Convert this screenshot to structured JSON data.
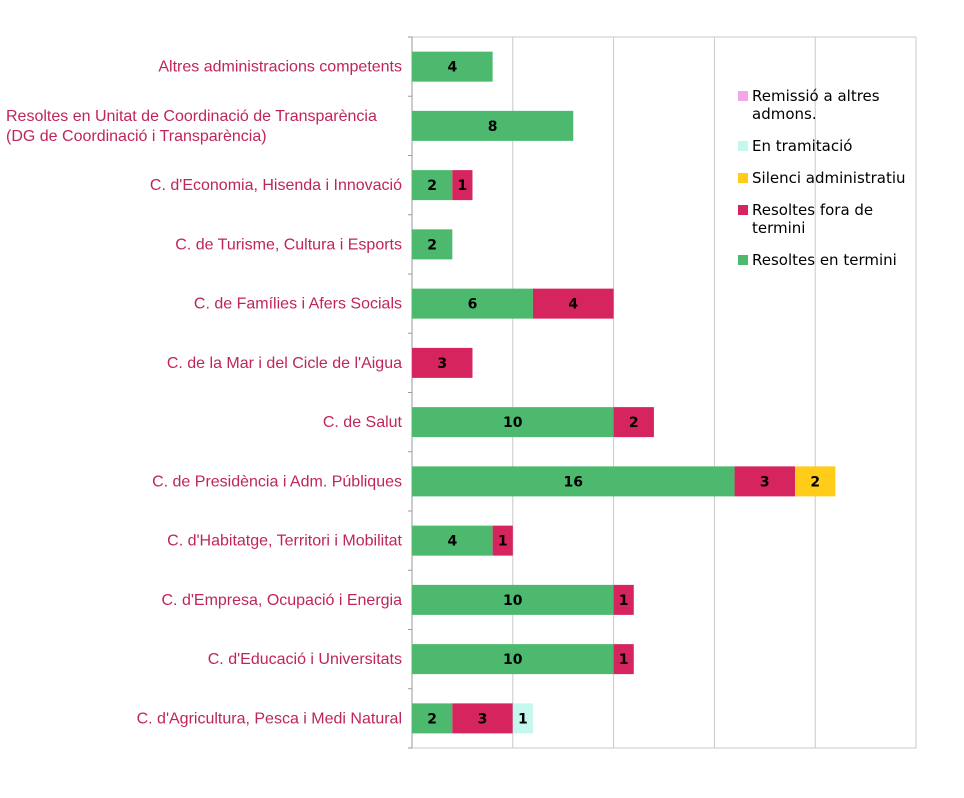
{
  "chart_data": {
    "type": "bar",
    "orientation": "horizontal",
    "stacked": true,
    "categories": [
      "Altres  administracions competents",
      "Resoltes en Unitat de Coordinació de Transparència\n(DG de Coordinació i Transparència)",
      "C. d'Economia, Hisenda i Innovació",
      "C. de Turisme, Cultura i Esports",
      "C. de Famílies i Afers Socials",
      "C. de la Mar i del Cicle de l'Aigua",
      "C. de Salut",
      "C. de Presidència i Adm. Públiques",
      "C. d'Habitatge, Territori i Mobilitat",
      "C. d'Empresa, Ocupació i Energia",
      "C. d'Educació i Universitats",
      "C. d'Agricultura, Pesca i Medi Natural"
    ],
    "series": [
      {
        "name": "Resoltes en termini",
        "color": "#4cb96e",
        "values": [
          4,
          8,
          2,
          2,
          6,
          0,
          10,
          16,
          4,
          10,
          10,
          2
        ]
      },
      {
        "name": "Resoltes fora de termini",
        "color": "#d5245e",
        "values": [
          0,
          0,
          1,
          0,
          4,
          3,
          2,
          3,
          1,
          1,
          1,
          3
        ]
      },
      {
        "name": "Silenci administratiu",
        "color": "#ffcc1a",
        "values": [
          0,
          0,
          0,
          0,
          0,
          0,
          0,
          2,
          0,
          0,
          0,
          0
        ]
      },
      {
        "name": "En tramitació",
        "color": "#c4f7ee",
        "values": [
          0,
          0,
          0,
          0,
          0,
          0,
          0,
          0,
          0,
          0,
          0,
          1
        ]
      },
      {
        "name": "Remissió a altres admons.",
        "color": "#f4a6ea",
        "values": [
          0,
          0,
          0,
          0,
          0,
          0,
          0,
          0,
          0,
          0,
          0,
          0
        ]
      }
    ],
    "legend_order": [
      "Remissió a altres admons.",
      "En tramitació",
      "Silenci administratiu",
      "Resoltes fora de termini",
      "Resoltes en termini"
    ],
    "xlim": [
      0,
      25
    ],
    "x_gridline_step": 5,
    "grid": true,
    "legend_position": "right",
    "title": "",
    "xlabel": "",
    "ylabel": ""
  }
}
